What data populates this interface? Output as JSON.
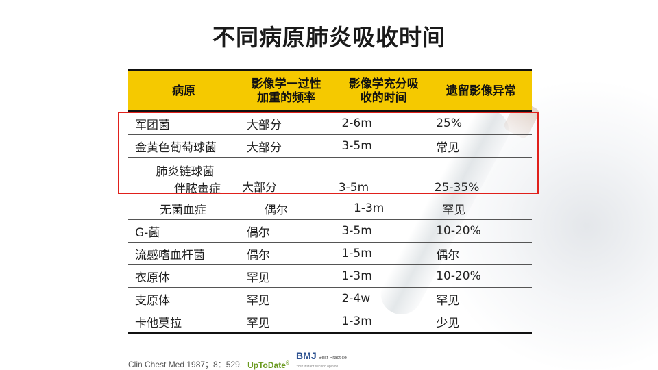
{
  "title": "不同病原肺炎吸收时间",
  "table": {
    "headers": [
      [
        "病原"
      ],
      [
        "影像学一过性",
        "加重的频率"
      ],
      [
        "影像学充分吸",
        "收的时间"
      ],
      [
        "遗留影像异常"
      ]
    ],
    "rows": [
      {
        "pathogen": "军团菌",
        "freq": "大部分",
        "time": "2-6m",
        "residual": "25%"
      },
      {
        "pathogen": "金黄色葡萄球菌",
        "freq": "大部分",
        "time": "3-5m",
        "residual": "常见"
      },
      {
        "pathogen_group": "肺炎链球菌",
        "pathogen": "伴脓毒症",
        "freq": "大部分",
        "time": "3-5m",
        "residual": "25-35%"
      },
      {
        "pathogen": "无菌血症",
        "freq": "偶尔",
        "time": "1-3m",
        "residual": "罕见"
      },
      {
        "pathogen": "G-菌",
        "freq": "偶尔",
        "time": "3-5m",
        "residual": "10-20%"
      },
      {
        "pathogen": "流感嗜血杆菌",
        "freq": "偶尔",
        "time": "1-5m",
        "residual": "偶尔"
      },
      {
        "pathogen": "衣原体",
        "freq": "罕见",
        "time": "1-3m",
        "residual": "10-20%"
      },
      {
        "pathogen": "支原体",
        "freq": "罕见",
        "time": "2-4w",
        "residual": "罕见"
      },
      {
        "pathogen": "卡他莫拉",
        "freq": "罕见",
        "time": "1-3m",
        "residual": "少见"
      }
    ]
  },
  "footer": {
    "citation": "Clin Chest Med 1987；8：529.",
    "uptodate": "UpToDate",
    "uptodate_mark": "®",
    "bmj": "BMJ",
    "bmj_product": "Best Practice",
    "bmj_tagline": "Your instant second opinion"
  },
  "colors": {
    "header_bg": "#f5c900",
    "highlight_border": "#e0201b"
  }
}
